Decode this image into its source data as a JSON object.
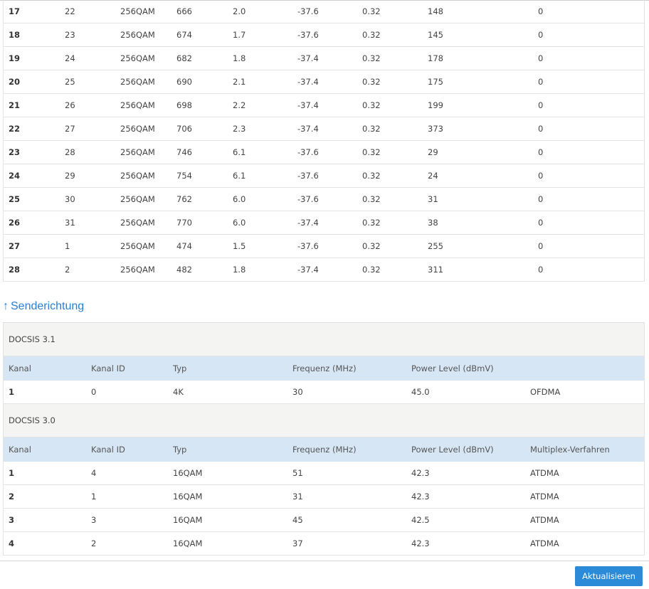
{
  "downstream": {
    "rows": [
      [
        "17",
        "22",
        "256QAM",
        "666",
        "2.0",
        "-37.6",
        "0.32",
        "148",
        "0"
      ],
      [
        "18",
        "23",
        "256QAM",
        "674",
        "1.7",
        "-37.6",
        "0.32",
        "145",
        "0"
      ],
      [
        "19",
        "24",
        "256QAM",
        "682",
        "1.8",
        "-37.4",
        "0.32",
        "178",
        "0"
      ],
      [
        "20",
        "25",
        "256QAM",
        "690",
        "2.1",
        "-37.4",
        "0.32",
        "175",
        "0"
      ],
      [
        "21",
        "26",
        "256QAM",
        "698",
        "2.2",
        "-37.4",
        "0.32",
        "199",
        "0"
      ],
      [
        "22",
        "27",
        "256QAM",
        "706",
        "2.3",
        "-37.4",
        "0.32",
        "373",
        "0"
      ],
      [
        "23",
        "28",
        "256QAM",
        "746",
        "6.1",
        "-37.6",
        "0.32",
        "29",
        "0"
      ],
      [
        "24",
        "29",
        "256QAM",
        "754",
        "6.1",
        "-37.6",
        "0.32",
        "24",
        "0"
      ],
      [
        "25",
        "30",
        "256QAM",
        "762",
        "6.0",
        "-37.6",
        "0.32",
        "31",
        "0"
      ],
      [
        "26",
        "31",
        "256QAM",
        "770",
        "6.0",
        "-37.4",
        "0.32",
        "38",
        "0"
      ],
      [
        "27",
        "1",
        "256QAM",
        "474",
        "1.5",
        "-37.6",
        "0.32",
        "255",
        "0"
      ],
      [
        "28",
        "2",
        "256QAM",
        "482",
        "1.8",
        "-37.4",
        "0.32",
        "311",
        "0"
      ]
    ]
  },
  "upstream": {
    "section_arrow": "↑",
    "section_title": "Senderichtung",
    "docsis31": {
      "title": "DOCSIS 3.1",
      "headers": [
        "Kanal",
        "Kanal ID",
        "Typ",
        "Frequenz (MHz)",
        "Power Level (dBmV)",
        ""
      ],
      "rows": [
        [
          "1",
          "0",
          "4K",
          "30",
          "45.0",
          "OFDMA"
        ]
      ]
    },
    "docsis30": {
      "title": "DOCSIS 3.0",
      "headers": [
        "Kanal",
        "Kanal ID",
        "Typ",
        "Frequenz (MHz)",
        "Power Level (dBmV)",
        "Multiplex-Verfahren"
      ],
      "rows": [
        [
          "1",
          "4",
          "16QAM",
          "51",
          "42.3",
          "ATDMA"
        ],
        [
          "2",
          "1",
          "16QAM",
          "31",
          "42.3",
          "ATDMA"
        ],
        [
          "3",
          "3",
          "16QAM",
          "45",
          "42.5",
          "ATDMA"
        ],
        [
          "4",
          "2",
          "16QAM",
          "37",
          "42.3",
          "ATDMA"
        ]
      ]
    }
  },
  "actions": {
    "refresh_label": "Aktualisieren"
  }
}
